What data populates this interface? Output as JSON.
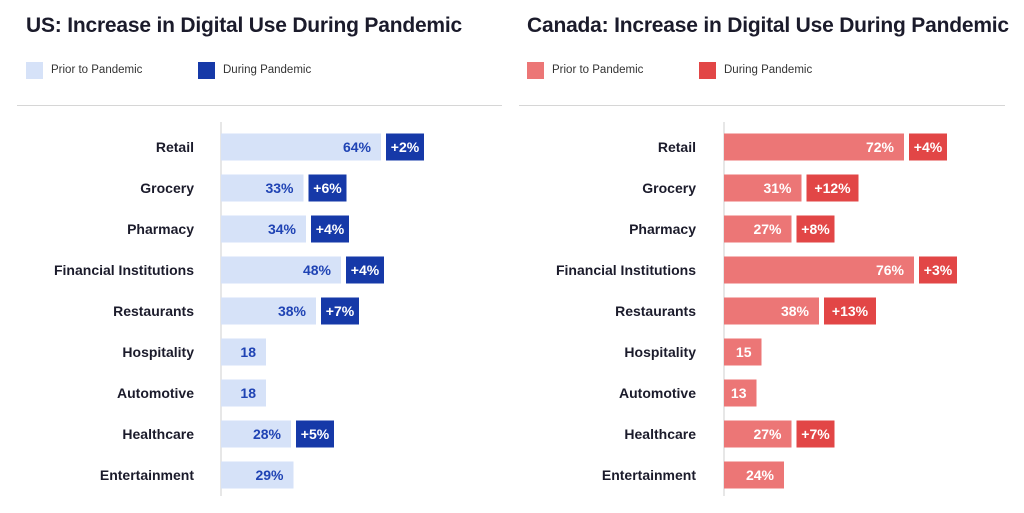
{
  "chart_data": [
    {
      "type": "bar",
      "title": "US: Increase in Digital Use During Pandemic",
      "legend": [
        "Prior to Pandemic",
        "During Pandemic"
      ],
      "colors": {
        "prior": "#d6e2f8",
        "during": "#1639a8",
        "prior_text": "#1f43b4",
        "during_text": "#ffffff"
      },
      "categories": [
        "Retail",
        "Grocery",
        "Pharmacy",
        "Financial Institutions",
        "Restaurants",
        "Hospitality",
        "Automotive",
        "Healthcare",
        "Entertainment"
      ],
      "series": [
        {
          "name": "Prior to Pandemic",
          "values": [
            64,
            33,
            34,
            48,
            38,
            18,
            18,
            28,
            29
          ],
          "labels": [
            "64%",
            "33%",
            "34%",
            "48%",
            "38%",
            "18",
            "18",
            "28%",
            "29%"
          ]
        },
        {
          "name": "During Pandemic",
          "values": [
            2,
            6,
            4,
            4,
            7,
            null,
            null,
            5,
            null
          ],
          "labels": [
            "+2%",
            "+6%",
            "+4%",
            "+4%",
            "+7%",
            "",
            "",
            "+5%",
            ""
          ]
        }
      ]
    },
    {
      "type": "bar",
      "title": "Canada: Increase in Digital Use During Pandemic",
      "legend": [
        "Prior to Pandemic",
        "During Pandemic"
      ],
      "colors": {
        "prior": "#ec7676",
        "during": "#e24646",
        "prior_text": "#ffffff",
        "during_text": "#ffffff"
      },
      "categories": [
        "Retail",
        "Grocery",
        "Pharmacy",
        "Financial Institutions",
        "Restaurants",
        "Hospitality",
        "Automotive",
        "Healthcare",
        "Entertainment"
      ],
      "series": [
        {
          "name": "Prior to Pandemic",
          "values": [
            72,
            31,
            27,
            76,
            38,
            15,
            13,
            27,
            24
          ],
          "labels": [
            "72%",
            "31%",
            "27%",
            "76%",
            "38%",
            "15",
            "13",
            "27%",
            "24%"
          ]
        },
        {
          "name": "During Pandemic",
          "values": [
            4,
            12,
            8,
            3,
            13,
            null,
            null,
            7,
            null
          ],
          "labels": [
            "+4%",
            "+12%",
            "+8%",
            "+3%",
            "+13%",
            "",
            "",
            "+7%",
            ""
          ]
        }
      ]
    }
  ]
}
